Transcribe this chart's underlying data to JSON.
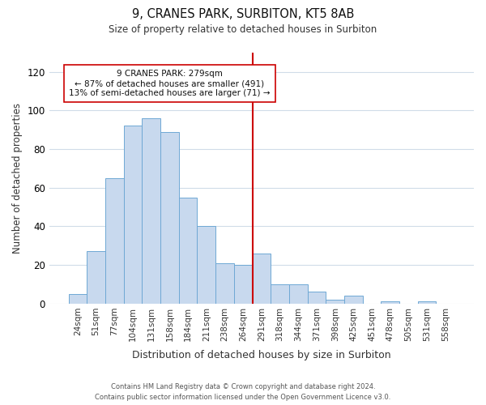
{
  "title": "9, CRANES PARK, SURBITON, KT5 8AB",
  "subtitle": "Size of property relative to detached houses in Surbiton",
  "xlabel": "Distribution of detached houses by size in Surbiton",
  "ylabel": "Number of detached properties",
  "bar_labels": [
    "24sqm",
    "51sqm",
    "77sqm",
    "104sqm",
    "131sqm",
    "158sqm",
    "184sqm",
    "211sqm",
    "238sqm",
    "264sqm",
    "291sqm",
    "318sqm",
    "344sqm",
    "371sqm",
    "398sqm",
    "425sqm",
    "451sqm",
    "478sqm",
    "505sqm",
    "531sqm",
    "558sqm"
  ],
  "bar_values": [
    5,
    27,
    65,
    92,
    96,
    89,
    55,
    40,
    21,
    20,
    26,
    10,
    10,
    6,
    2,
    4,
    0,
    1,
    0,
    1,
    0
  ],
  "bar_color": "#c8d9ee",
  "bar_edge_color": "#6fa8d4",
  "vline_color": "#cc0000",
  "vline_x_index": 10,
  "ylim": [
    0,
    130
  ],
  "yticks": [
    0,
    20,
    40,
    60,
    80,
    100,
    120
  ],
  "annotation_title": "9 CRANES PARK: 279sqm",
  "annotation_line1": "← 87% of detached houses are smaller (491)",
  "annotation_line2": "13% of semi-detached houses are larger (71) →",
  "annotation_box_color": "#ffffff",
  "annotation_box_edge": "#cc0000",
  "footer_line1": "Contains HM Land Registry data © Crown copyright and database right 2024.",
  "footer_line2": "Contains public sector information licensed under the Open Government Licence v3.0.",
  "background_color": "#ffffff",
  "grid_color": "#d0dce8"
}
